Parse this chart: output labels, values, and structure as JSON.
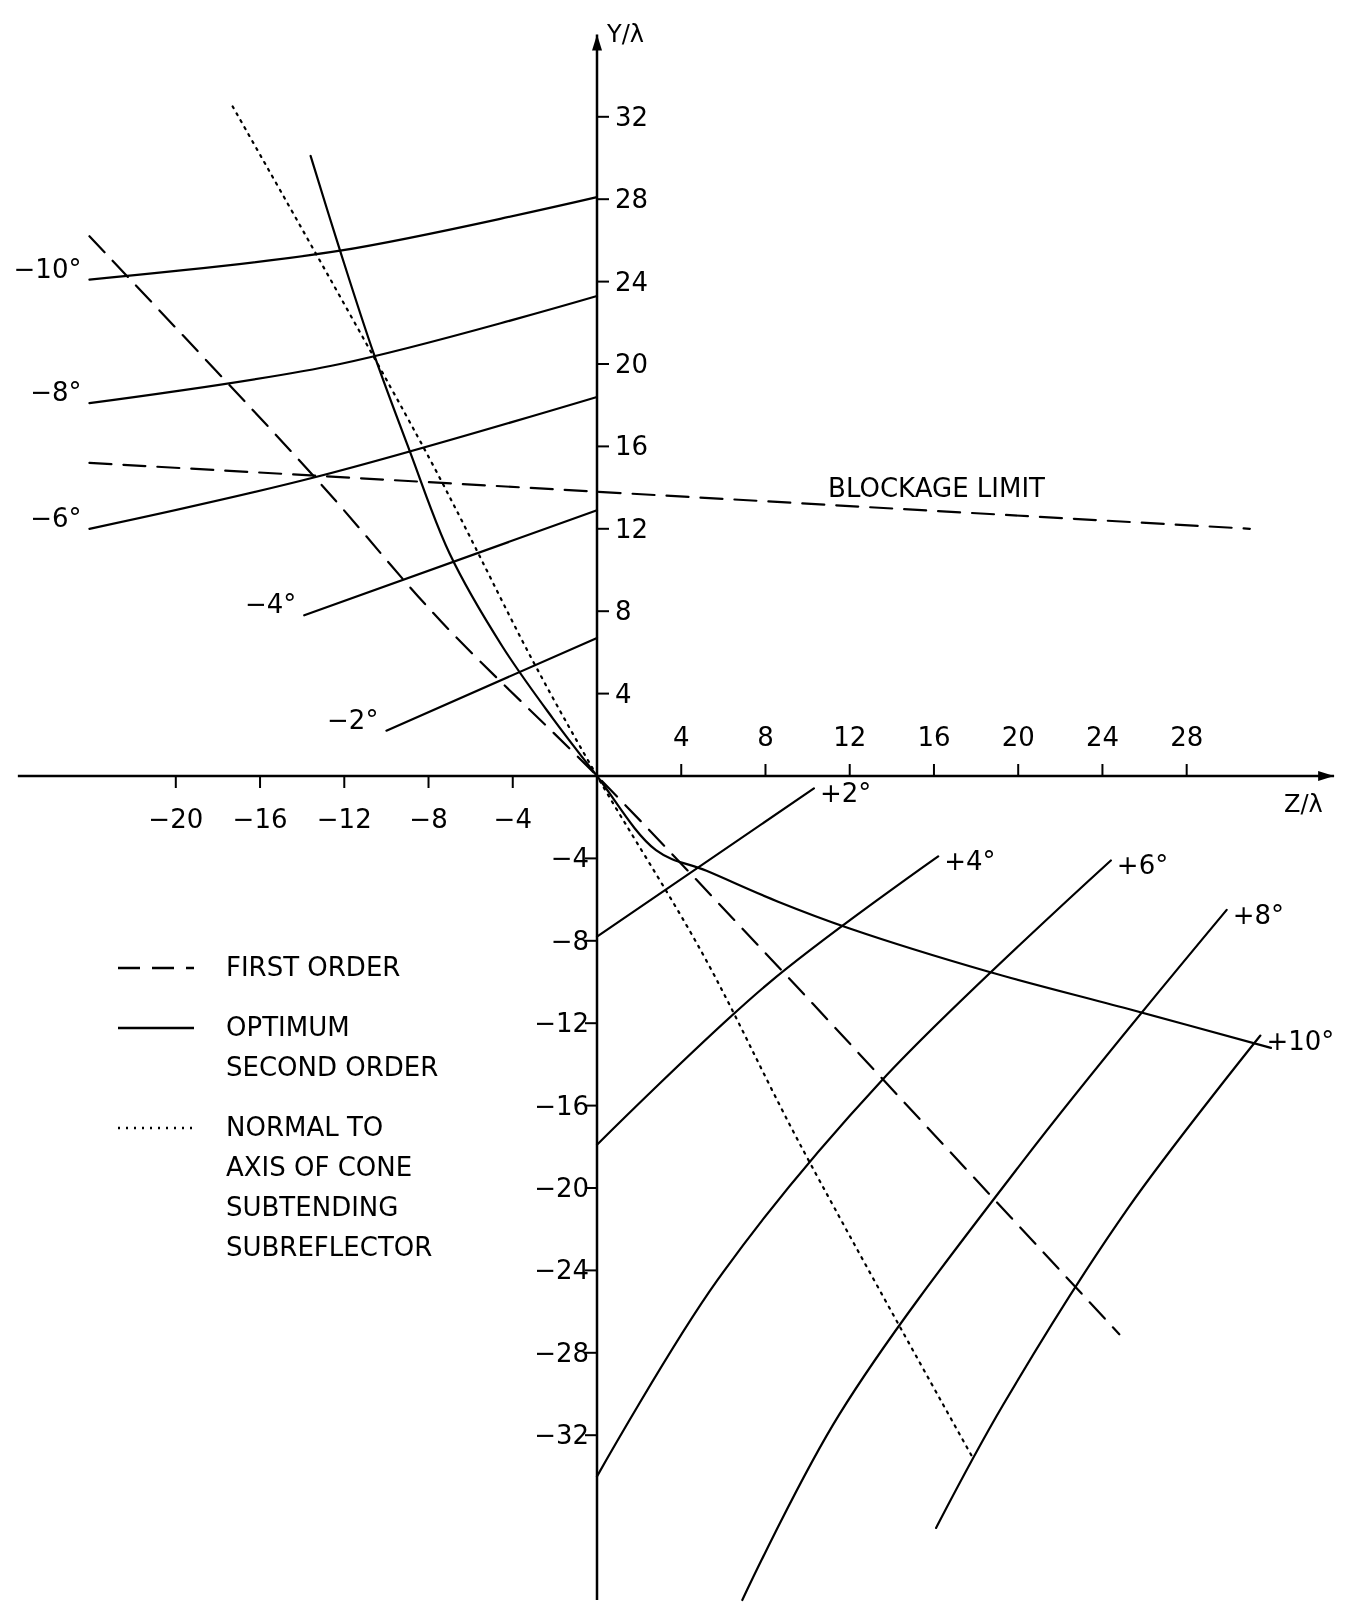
{
  "chart_data": {
    "type": "line",
    "xlabel": "Z/λ",
    "y2label": "Y/λ",
    "xlim": [
      -27.5,
      35
    ],
    "ylim": [
      -40,
      36
    ],
    "xticks": [
      {
        "value": -20,
        "label": "−20"
      },
      {
        "value": -16,
        "label": "−16"
      },
      {
        "value": -12,
        "label": "−12"
      },
      {
        "value": -8,
        "label": "−8"
      },
      {
        "value": -4,
        "label": "−4"
      }
    ],
    "x2lim": [
      -27.5,
      35
    ],
    "x2ticks": [
      4,
      8,
      12,
      16,
      20,
      24,
      28
    ],
    "yticks": [
      {
        "value": -32,
        "label": "−32"
      },
      {
        "value": -28,
        "label": "−28"
      },
      {
        "value": -24,
        "label": "−24"
      },
      {
        "value": -20,
        "label": "−20"
      },
      {
        "value": -16,
        "label": "−16"
      },
      {
        "value": -12,
        "label": "−12"
      },
      {
        "value": -8,
        "label": "−8"
      },
      {
        "value": -4,
        "label": "−4"
      }
    ],
    "y2lim": [
      -40,
      36
    ],
    "y2ticks": [
      4,
      8,
      12,
      16,
      20,
      24,
      28,
      32
    ],
    "grid": false,
    "legend": "bottom left",
    "marker": "none",
    "series": [
      {
        "name": "FIRST ORDER",
        "color": "#000000",
        "line_style": "dashed",
        "x": [
          -24.1,
          -13.4,
          -7.4,
          0,
          8,
          16,
          24.8
        ],
        "values": [
          26.2,
          14.5,
          7.5,
          0,
          -8.6,
          -17.4,
          -27.1
        ]
      },
      {
        "name": "OPTIMUM\nSECOND ORDER",
        "color": "#000000",
        "line_style": "solid",
        "x": [
          -13.6,
          -12.2,
          -10.6,
          -8.9,
          -7,
          -4.5,
          -2.1,
          0,
          2.8,
          5.2,
          8.6,
          12,
          18.6,
          25.2,
          32
        ],
        "values": [
          30.1,
          25.5,
          20.5,
          15.8,
          10.8,
          6.3,
          2.8,
          0,
          -3.6,
          -4.6,
          -6.1,
          -7.4,
          -9.5,
          -11.3,
          -13.2
        ]
      },
      {
        "name": "NORMAL TO\nAXIS OF CONE\nSUBTENDING\nSUBREFLECTOR",
        "color": "#000000",
        "line_style": "dotted",
        "x": [
          -17.3,
          -8,
          -3,
          0,
          5,
          9.6,
          17.9
        ],
        "values": [
          32.5,
          15.5,
          5.5,
          0,
          -8.6,
          -17.8,
          -33.2
        ]
      },
      {
        "color": "#000000",
        "line_style": "solid",
        "x": [
          -24.1,
          -12.2,
          0
        ],
        "values": [
          24.1,
          25.5,
          28.1
        ]
      },
      {
        "color": "#000000",
        "line_style": "solid",
        "x": [
          -24.1,
          -12.2,
          0
        ],
        "values": [
          18.1,
          20,
          23.3
        ]
      },
      {
        "color": "#000000",
        "line_style": "solid",
        "x": [
          -24.1,
          -13.4,
          0
        ],
        "values": [
          12,
          14.5,
          18.4
        ]
      },
      {
        "color": "#000000",
        "line_style": "solid",
        "x": [
          -13.9,
          0
        ],
        "values": [
          7.8,
          12.9
        ]
      },
      {
        "color": "#000000",
        "line_style": "solid",
        "x": [
          -10,
          0
        ],
        "values": [
          2.2,
          6.7
        ]
      },
      {
        "color": "#000000",
        "line_style": "solid",
        "x": [
          0,
          10.3
        ],
        "values": [
          -7.8,
          -0.6
        ]
      },
      {
        "color": "#000000",
        "line_style": "solid",
        "x": [
          0,
          8.1,
          16.2
        ],
        "values": [
          -17.9,
          -10.1,
          -3.9
        ]
      },
      {
        "color": "#000000",
        "line_style": "solid",
        "x": [
          0,
          5.7,
          13.5,
          24.4
        ],
        "values": [
          -34,
          -24.5,
          -14.8,
          -4.1
        ]
      },
      {
        "color": "#000000",
        "line_style": "solid",
        "x": [
          6.9,
          11.5,
          20.3,
          29.9
        ],
        "values": [
          -40,
          -31,
          -18.6,
          -6.5
        ]
      },
      {
        "color": "#000000",
        "line_style": "solid",
        "x": [
          16.1,
          19.3,
          25.2,
          31.5
        ],
        "values": [
          -36.5,
          -30.5,
          -21,
          -12.6
        ]
      },
      {
        "color": "#000000",
        "line_style": "dashed",
        "x": [
          -24.1,
          31
        ],
        "values": [
          15.2,
          12
        ]
      }
    ],
    "annotations": [
      "−10°",
      "−8°",
      "−6°",
      "−4°",
      "−2°",
      "+2°",
      "+4°",
      "+6°",
      "+8°",
      "+10°",
      "BLOCKAGE LIMIT"
    ]
  }
}
